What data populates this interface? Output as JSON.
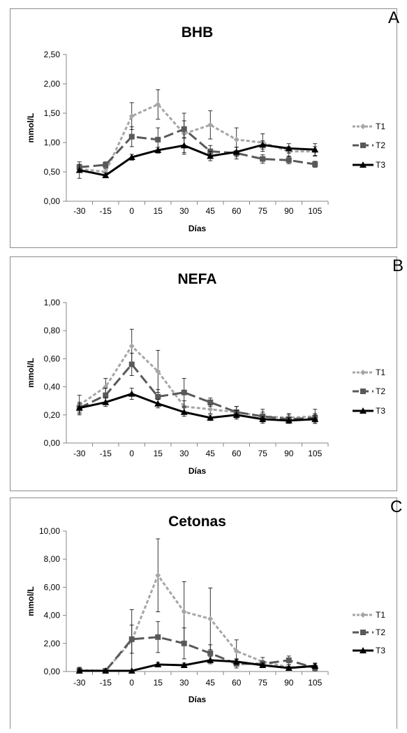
{
  "chart_data": [
    {
      "panel_letter": "A",
      "type": "line",
      "title": "BHB",
      "xlabel": "Días",
      "ylabel": "mmol/L",
      "categories": [
        "-30",
        "-15",
        "0",
        "15",
        "30",
        "45",
        "60",
        "75",
        "90",
        "105"
      ],
      "ylim": [
        0,
        2.5
      ],
      "yticks": [
        "0,00",
        "0,50",
        "1,00",
        "1,50",
        "2,00",
        "2,50"
      ],
      "grid": false,
      "legend_position": "right",
      "series": [
        {
          "name": "T1",
          "style": "short-dash",
          "marker": "diamond",
          "color": "#a6a6a6",
          "values": [
            0.55,
            0.5,
            1.45,
            1.65,
            1.15,
            1.3,
            1.05,
            1.0,
            0.85,
            0.85
          ],
          "errors": [
            0.05,
            0.05,
            0.23,
            0.25,
            0.35,
            0.24,
            0.2,
            0.15,
            0.08,
            0.08
          ]
        },
        {
          "name": "T2",
          "style": "long-dash",
          "marker": "square",
          "color": "#595959",
          "values": [
            0.58,
            0.62,
            1.1,
            1.05,
            1.23,
            0.85,
            0.82,
            0.72,
            0.7,
            0.63
          ],
          "errors": [
            0.05,
            0.05,
            0.17,
            0.2,
            0.14,
            0.1,
            0.1,
            0.07,
            0.06,
            0.05
          ]
        },
        {
          "name": "T3",
          "style": "solid",
          "marker": "triangle",
          "color": "#000000",
          "values": [
            0.53,
            0.44,
            0.75,
            0.87,
            0.95,
            0.77,
            0.84,
            0.96,
            0.9,
            0.88
          ],
          "errors": [
            0.14,
            0.04,
            0.05,
            0.05,
            0.12,
            0.08,
            0.08,
            0.07,
            0.08,
            0.1
          ]
        }
      ]
    },
    {
      "panel_letter": "B",
      "type": "line",
      "title": "NEFA",
      "xlabel": "Días",
      "ylabel": "mmol/L",
      "categories": [
        "-30",
        "-15",
        "0",
        "15",
        "30",
        "45",
        "60",
        "75",
        "90",
        "105"
      ],
      "ylim": [
        0,
        1.0
      ],
      "yticks": [
        "0,00",
        "0,20",
        "0,40",
        "0,60",
        "0,80",
        "1,00"
      ],
      "grid": false,
      "legend_position": "right",
      "series": [
        {
          "name": "T1",
          "style": "short-dash",
          "marker": "diamond",
          "color": "#a6a6a6",
          "values": [
            0.27,
            0.4,
            0.69,
            0.51,
            0.26,
            0.24,
            0.22,
            0.19,
            0.18,
            0.19
          ],
          "errors": [
            0.07,
            0.06,
            0.12,
            0.15,
            0.04,
            0.03,
            0.04,
            0.05,
            0.03,
            0.05
          ]
        },
        {
          "name": "T2",
          "style": "long-dash",
          "marker": "square",
          "color": "#595959",
          "values": [
            0.25,
            0.34,
            0.56,
            0.33,
            0.36,
            0.29,
            0.22,
            0.19,
            0.17,
            0.18
          ],
          "errors": [
            0.04,
            0.05,
            0.08,
            0.05,
            0.1,
            0.03,
            0.04,
            0.03,
            0.03,
            0.03
          ]
        },
        {
          "name": "T3",
          "style": "solid",
          "marker": "triangle",
          "color": "#000000",
          "values": [
            0.25,
            0.29,
            0.35,
            0.28,
            0.22,
            0.18,
            0.2,
            0.17,
            0.16,
            0.17
          ],
          "errors": [
            0.03,
            0.03,
            0.04,
            0.03,
            0.03,
            0.02,
            0.03,
            0.02,
            0.02,
            0.03
          ]
        }
      ]
    },
    {
      "panel_letter": "C",
      "type": "line",
      "title": "Cetonas",
      "xlabel": "Días",
      "ylabel": "mmol/L",
      "categories": [
        "-30",
        "-15",
        "0",
        "15",
        "30",
        "45",
        "60",
        "75",
        "90",
        "105"
      ],
      "ylim": [
        0,
        10.0
      ],
      "yticks": [
        "0,00",
        "2,00",
        "4,00",
        "6,00",
        "8,00",
        "10,00"
      ],
      "grid": false,
      "legend_position": "right",
      "series": [
        {
          "name": "T1",
          "style": "short-dash",
          "marker": "diamond",
          "color": "#a6a6a6",
          "values": [
            0.1,
            0.05,
            2.2,
            6.85,
            4.25,
            3.75,
            1.45,
            0.7,
            0.3,
            0.35
          ],
          "errors": [
            0.2,
            0.1,
            2.2,
            2.6,
            2.15,
            2.2,
            0.8,
            0.3,
            0.2,
            0.2
          ]
        },
        {
          "name": "T2",
          "style": "long-dash",
          "marker": "square",
          "color": "#595959",
          "values": [
            0.05,
            0.05,
            2.3,
            2.45,
            2.0,
            1.3,
            0.55,
            0.55,
            0.8,
            0.25
          ],
          "errors": [
            0.2,
            0.1,
            1.0,
            1.1,
            1.1,
            0.6,
            0.3,
            0.2,
            0.3,
            0.2
          ]
        },
        {
          "name": "T3",
          "style": "solid",
          "marker": "triangle",
          "color": "#000000",
          "values": [
            0.05,
            0.05,
            0.05,
            0.5,
            0.45,
            0.8,
            0.7,
            0.45,
            0.25,
            0.4
          ],
          "errors": [
            0.1,
            0.05,
            0.05,
            0.15,
            0.15,
            0.25,
            0.2,
            0.15,
            0.1,
            0.2
          ]
        }
      ]
    }
  ]
}
